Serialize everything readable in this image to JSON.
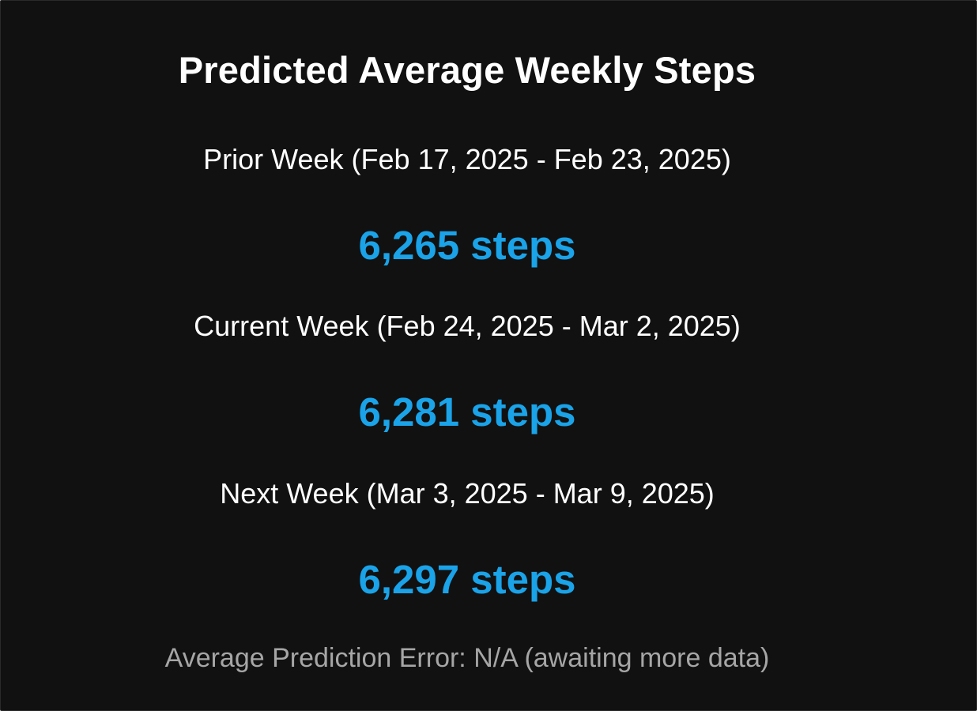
{
  "header": {
    "title": "Predicted Average Weekly Steps"
  },
  "weeks": [
    {
      "label": "Prior Week (Feb 17, 2025 - Feb 23, 2025)",
      "steps": "6,265 steps"
    },
    {
      "label": "Current Week (Feb 24, 2025 - Mar 2, 2025)",
      "steps": "6,281 steps"
    },
    {
      "label": "Next Week (Mar 3, 2025 - Mar 9, 2025)",
      "steps": "6,297 steps"
    }
  ],
  "footer": {
    "error_text": "Average Prediction Error: N/A (awaiting more data)"
  },
  "colors": {
    "background": "#111111",
    "accent": "#1aa3e8",
    "text": "#ffffff",
    "muted": "#a6a6a6"
  }
}
